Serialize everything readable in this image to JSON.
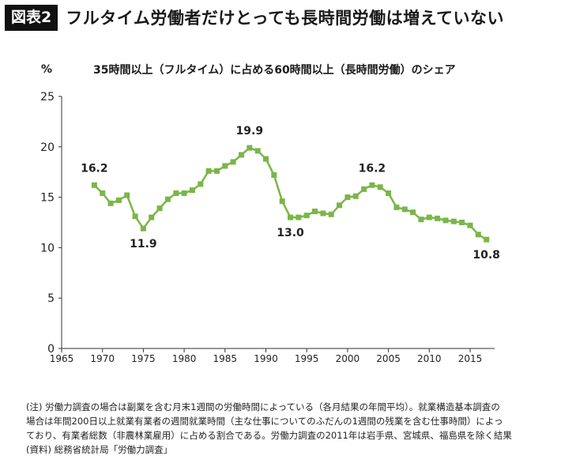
{
  "header": {
    "badge": "図表2",
    "title": "フルタイム労働者だけとっても長時間労働は増えていない"
  },
  "chart_data": {
    "type": "line",
    "title": "35時間以上（フルタイム）に占める60時間以上（長時間労働）のシェア",
    "ylabel": "%",
    "xlabel": "",
    "xlim": [
      1965,
      2018
    ],
    "ylim": [
      0,
      25
    ],
    "xticks": [
      1965,
      1970,
      1975,
      1980,
      1985,
      1990,
      1995,
      2000,
      2005,
      2010,
      2015
    ],
    "yticks": [
      0,
      5,
      10,
      15,
      20,
      25
    ],
    "grid": false,
    "legend": "none",
    "color": "#7ab648",
    "x": [
      1969,
      1970,
      1971,
      1972,
      1973,
      1974,
      1975,
      1976,
      1977,
      1978,
      1979,
      1980,
      1981,
      1982,
      1983,
      1984,
      1985,
      1986,
      1987,
      1988,
      1989,
      1990,
      1991,
      1992,
      1993,
      1994,
      1995,
      1996,
      1997,
      1998,
      1999,
      2000,
      2001,
      2002,
      2003,
      2004,
      2005,
      2006,
      2007,
      2008,
      2009,
      2010,
      2011,
      2012,
      2013,
      2014,
      2015,
      2016,
      2017
    ],
    "values": [
      16.2,
      15.4,
      14.4,
      14.7,
      15.2,
      13.1,
      11.9,
      13.0,
      13.9,
      14.8,
      15.4,
      15.4,
      15.7,
      16.3,
      17.6,
      17.6,
      18.1,
      18.5,
      19.2,
      19.9,
      19.6,
      18.8,
      17.2,
      14.6,
      13.0,
      13.0,
      13.2,
      13.6,
      13.4,
      13.3,
      14.2,
      15.0,
      15.1,
      15.8,
      16.2,
      16.0,
      15.4,
      14.0,
      13.8,
      13.5,
      12.8,
      13.0,
      12.9,
      12.7,
      12.6,
      12.5,
      12.2,
      11.3,
      10.8
    ],
    "annotations": [
      {
        "x": 1969,
        "y": 16.2,
        "text": "16.2"
      },
      {
        "x": 1975,
        "y": 11.9,
        "text": "11.9"
      },
      {
        "x": 1988,
        "y": 19.9,
        "text": "19.9"
      },
      {
        "x": 1993,
        "y": 13.0,
        "text": "13.0"
      },
      {
        "x": 2003,
        "y": 16.2,
        "text": "16.2"
      },
      {
        "x": 2017,
        "y": 10.8,
        "text": "10.8"
      }
    ]
  },
  "note": {
    "line1": "(注) 労働力調査の場合は副業を含む月末1週間の労働時間によっている（各月結果の年間平均）。就業構造基本調査の",
    "line2": "場合は年間200日以上就業有業者の週間就業時間（主な仕事についてのふだんの1週間の残業を含む仕事時間）によっ",
    "line3": "ており、有業者総数（非農林業雇用）に占める割合である。労働力調査の2011年は岩手県、宮城県、福島県を除く結果",
    "line4": "(資料) 総務省統計局「労働力調査」"
  }
}
